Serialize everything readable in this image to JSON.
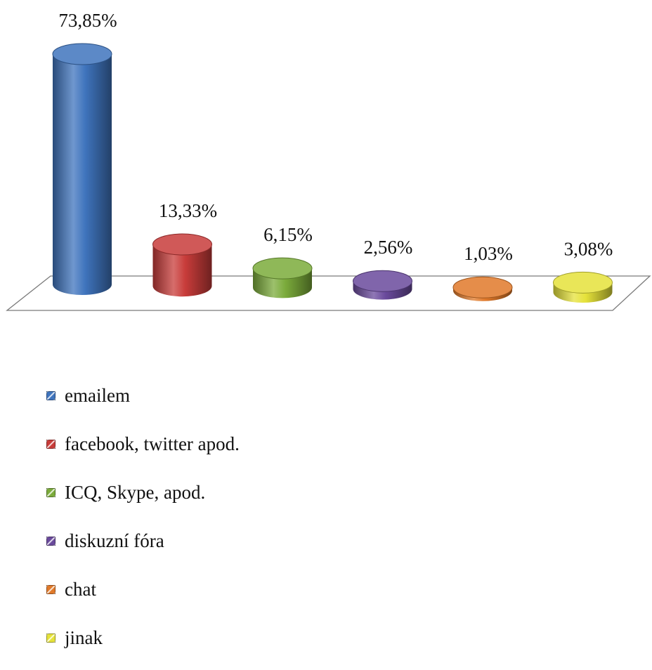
{
  "chart_data": {
    "type": "bar",
    "style": "3d-cylinder",
    "categories": [
      "emailem",
      "facebook, twitter apod.",
      "ICQ, Skype, apod.",
      "diskuzní fóra",
      "chat",
      "jinak"
    ],
    "values": [
      73.85,
      13.33,
      6.15,
      2.56,
      1.03,
      3.08
    ],
    "data_labels": [
      "73,85%",
      "13,33%",
      "6,15%",
      "2,56%",
      "1,03%",
      "3,08%"
    ],
    "colors": [
      "#3f74bd",
      "#c83c3a",
      "#7bab3b",
      "#6a4a9c",
      "#e0792a",
      "#e5e23a"
    ],
    "title": "",
    "xlabel": "",
    "ylabel": "",
    "ylim": [
      0,
      80
    ],
    "grid": false,
    "legend_position": "bottom-left"
  },
  "legend": {
    "items": [
      {
        "label": "emailem",
        "color": "#3f74bd"
      },
      {
        "label": "facebook, twitter apod.",
        "color": "#c83c3a"
      },
      {
        "label": "ICQ, Skype, apod.",
        "color": "#7bab3b"
      },
      {
        "label": "diskuzní fóra",
        "color": "#6a4a9c"
      },
      {
        "label": "chat",
        "color": "#e0792a"
      },
      {
        "label": "jinak",
        "color": "#e5e23a"
      }
    ]
  }
}
